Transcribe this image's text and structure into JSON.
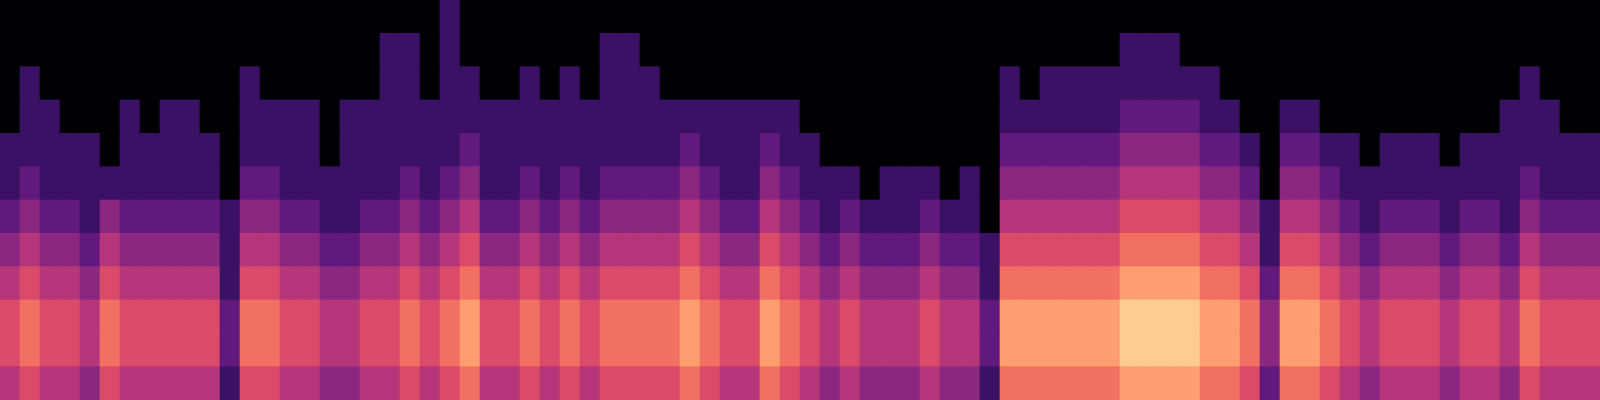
{
  "chart_data": {
    "type": "heatmap",
    "tick_labels": false,
    "grid": false,
    "color_range": [
      0,
      10
    ],
    "z": [
      [
        5,
        6,
        5,
        5,
        4,
        6,
        5,
        5,
        5,
        5,
        5,
        2,
        6,
        6,
        5,
        5,
        4,
        4,
        5,
        5,
        6,
        5,
        6,
        7,
        5,
        5,
        6,
        5,
        6,
        5,
        6,
        6,
        6,
        6,
        7,
        6,
        5,
        5,
        7,
        6,
        5,
        4,
        5,
        4,
        4,
        4,
        5,
        4,
        4,
        2,
        7,
        7,
        7,
        7,
        7,
        7,
        8,
        8,
        8,
        8,
        7,
        7,
        6,
        3,
        7,
        7,
        6,
        5,
        4,
        5,
        5,
        5,
        4,
        5,
        5,
        4,
        6,
        5,
        5,
        5
      ],
      [
        6,
        7,
        6,
        6,
        5,
        7,
        6,
        6,
        6,
        6,
        6,
        3,
        7,
        7,
        6,
        6,
        5,
        5,
        6,
        6,
        7,
        6,
        7,
        8,
        6,
        6,
        7,
        6,
        7,
        6,
        7,
        7,
        7,
        7,
        8,
        7,
        6,
        6,
        8,
        7,
        6,
        5,
        6,
        5,
        5,
        5,
        6,
        5,
        5,
        3,
        8,
        8,
        8,
        8,
        8,
        8,
        9,
        9,
        9,
        9,
        8,
        8,
        7,
        4,
        8,
        8,
        7,
        6,
        5,
        6,
        6,
        6,
        5,
        6,
        6,
        5,
        7,
        6,
        6,
        6
      ],
      [
        6,
        7,
        6,
        6,
        5,
        7,
        6,
        6,
        6,
        6,
        6,
        3,
        7,
        7,
        6,
        6,
        5,
        5,
        6,
        6,
        7,
        6,
        7,
        8,
        6,
        6,
        7,
        6,
        7,
        6,
        7,
        7,
        7,
        7,
        8,
        7,
        6,
        6,
        8,
        7,
        6,
        5,
        6,
        5,
        5,
        5,
        6,
        5,
        5,
        3,
        8,
        8,
        8,
        8,
        8,
        8,
        9,
        9,
        9,
        9,
        8,
        8,
        7,
        4,
        8,
        8,
        7,
        6,
        5,
        6,
        6,
        6,
        5,
        6,
        6,
        5,
        7,
        6,
        6,
        6
      ],
      [
        5,
        6,
        5,
        5,
        4,
        6,
        5,
        5,
        5,
        5,
        5,
        2,
        6,
        6,
        5,
        5,
        4,
        4,
        5,
        5,
        6,
        5,
        6,
        7,
        5,
        5,
        6,
        5,
        6,
        5,
        6,
        6,
        6,
        6,
        7,
        6,
        5,
        5,
        7,
        6,
        5,
        4,
        5,
        4,
        4,
        4,
        5,
        4,
        4,
        2,
        7,
        7,
        7,
        7,
        7,
        7,
        8,
        8,
        8,
        8,
        7,
        7,
        6,
        3,
        7,
        7,
        6,
        5,
        4,
        5,
        5,
        5,
        4,
        5,
        5,
        4,
        6,
        5,
        5,
        5
      ],
      [
        4,
        5,
        4,
        4,
        3,
        5,
        4,
        4,
        4,
        4,
        4,
        2,
        5,
        5,
        4,
        4,
        3,
        3,
        4,
        4,
        5,
        4,
        5,
        6,
        4,
        4,
        5,
        4,
        5,
        4,
        5,
        5,
        5,
        5,
        6,
        5,
        4,
        4,
        6,
        5,
        4,
        3,
        4,
        3,
        3,
        3,
        4,
        3,
        3,
        2,
        6,
        6,
        6,
        6,
        6,
        6,
        7,
        7,
        7,
        7,
        6,
        6,
        5,
        2,
        6,
        6,
        5,
        4,
        3,
        4,
        4,
        4,
        3,
        4,
        4,
        3,
        5,
        4,
        4,
        4
      ],
      [
        3,
        4,
        3,
        3,
        2,
        4,
        3,
        3,
        3,
        3,
        3,
        2,
        4,
        4,
        3,
        3,
        2,
        2,
        3,
        3,
        4,
        3,
        4,
        5,
        3,
        3,
        4,
        3,
        4,
        3,
        4,
        4,
        4,
        4,
        5,
        4,
        3,
        3,
        5,
        4,
        3,
        2,
        3,
        2,
        2,
        2,
        3,
        2,
        2,
        0,
        5,
        5,
        5,
        5,
        5,
        5,
        6,
        6,
        6,
        6,
        5,
        5,
        4,
        2,
        5,
        5,
        4,
        3,
        2,
        3,
        3,
        3,
        2,
        3,
        3,
        2,
        4,
        3,
        3,
        3
      ],
      [
        2,
        3,
        2,
        2,
        2,
        2,
        2,
        2,
        2,
        2,
        2,
        0,
        3,
        3,
        2,
        2,
        2,
        2,
        2,
        2,
        3,
        2,
        3,
        4,
        2,
        2,
        3,
        2,
        3,
        2,
        3,
        3,
        3,
        3,
        4,
        3,
        2,
        2,
        4,
        3,
        2,
        2,
        2,
        0,
        2,
        2,
        2,
        0,
        2,
        0,
        4,
        4,
        4,
        4,
        4,
        4,
        5,
        5,
        5,
        5,
        4,
        4,
        3,
        0,
        4,
        4,
        3,
        2,
        2,
        2,
        2,
        2,
        2,
        2,
        2,
        2,
        3,
        2,
        2,
        2
      ],
      [
        2,
        2,
        2,
        2,
        2,
        0,
        2,
        2,
        2,
        2,
        2,
        0,
        2,
        2,
        2,
        2,
        0,
        2,
        2,
        2,
        2,
        2,
        2,
        3,
        2,
        2,
        2,
        2,
        2,
        2,
        2,
        2,
        2,
        2,
        3,
        2,
        2,
        2,
        3,
        2,
        2,
        0,
        0,
        0,
        0,
        0,
        0,
        0,
        0,
        0,
        3,
        3,
        3,
        3,
        3,
        3,
        4,
        4,
        4,
        4,
        3,
        3,
        2,
        0,
        3,
        3,
        2,
        2,
        0,
        2,
        2,
        2,
        0,
        2,
        2,
        2,
        2,
        2,
        2,
        2
      ],
      [
        0,
        2,
        2,
        0,
        0,
        0,
        2,
        0,
        2,
        2,
        0,
        0,
        2,
        2,
        2,
        2,
        0,
        2,
        2,
        2,
        2,
        2,
        2,
        2,
        2,
        2,
        2,
        2,
        2,
        2,
        2,
        2,
        2,
        2,
        2,
        2,
        2,
        2,
        2,
        2,
        0,
        0,
        0,
        0,
        0,
        0,
        0,
        0,
        0,
        0,
        2,
        2,
        2,
        2,
        2,
        2,
        3,
        3,
        3,
        3,
        2,
        2,
        0,
        0,
        2,
        2,
        0,
        0,
        0,
        0,
        0,
        0,
        0,
        0,
        0,
        2,
        2,
        2,
        0,
        0
      ],
      [
        0,
        2,
        0,
        0,
        0,
        0,
        0,
        0,
        0,
        0,
        0,
        0,
        2,
        0,
        0,
        0,
        0,
        0,
        0,
        2,
        2,
        0,
        2,
        2,
        0,
        0,
        2,
        0,
        2,
        0,
        2,
        2,
        2,
        0,
        0,
        0,
        0,
        0,
        0,
        0,
        0,
        0,
        0,
        0,
        0,
        0,
        0,
        0,
        0,
        0,
        2,
        0,
        2,
        2,
        2,
        2,
        2,
        2,
        2,
        2,
        2,
        0,
        0,
        0,
        0,
        0,
        0,
        0,
        0,
        0,
        0,
        0,
        0,
        0,
        0,
        0,
        2,
        0,
        0,
        0
      ],
      [
        0,
        0,
        0,
        0,
        0,
        0,
        0,
        0,
        0,
        0,
        0,
        0,
        0,
        0,
        0,
        0,
        0,
        0,
        0,
        2,
        2,
        0,
        2,
        0,
        0,
        0,
        0,
        0,
        0,
        0,
        2,
        2,
        0,
        0,
        0,
        0,
        0,
        0,
        0,
        0,
        0,
        0,
        0,
        0,
        0,
        0,
        0,
        0,
        0,
        0,
        0,
        0,
        0,
        0,
        0,
        0,
        2,
        2,
        2,
        0,
        0,
        0,
        0,
        0,
        0,
        0,
        0,
        0,
        0,
        0,
        0,
        0,
        0,
        0,
        0,
        0,
        0,
        0,
        0,
        0
      ],
      [
        0,
        0,
        0,
        0,
        0,
        0,
        0,
        0,
        0,
        0,
        0,
        0,
        0,
        0,
        0,
        0,
        0,
        0,
        0,
        0,
        0,
        0,
        2,
        0,
        0,
        0,
        0,
        0,
        0,
        0,
        0,
        0,
        0,
        0,
        0,
        0,
        0,
        0,
        0,
        0,
        0,
        0,
        0,
        0,
        0,
        0,
        0,
        0,
        0,
        0,
        0,
        0,
        0,
        0,
        0,
        0,
        0,
        0,
        0,
        0,
        0,
        0,
        0,
        0,
        0,
        0,
        0,
        0,
        0,
        0,
        0,
        0,
        0,
        0,
        0,
        0,
        0,
        0,
        0,
        0
      ]
    ]
  }
}
